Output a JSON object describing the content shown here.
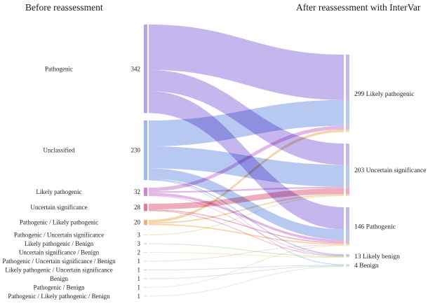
{
  "headers": {
    "left": "Before reassessment",
    "right": "After reassessment with InterVar"
  },
  "chart_data": {
    "type": "sankey",
    "title_left_column": "Before reassessment",
    "title_right_column": "After reassessment with InterVar",
    "left_nodes": [
      {
        "label": "Pathogenic",
        "value": 342,
        "color": "#b6a3e8",
        "flow_color": "#c6b6ee"
      },
      {
        "label": "Unclassified",
        "value": 230,
        "color": "#9db8ec",
        "flow_color": "#b7c9f1"
      },
      {
        "label": "Likely pathogenic",
        "value": 32,
        "color": "#d284d2",
        "flow_color": "#e3b7e6"
      },
      {
        "label": "Uncertain significance",
        "value": 28,
        "color": "#e57d92",
        "flow_color": "#efacbc"
      },
      {
        "label": "Pathogenic / Likely pathogenic",
        "value": 20,
        "color": "#efb277",
        "flow_color": "#f5d6ac"
      },
      {
        "label": "Pathogenic / Uncertain significance",
        "value": 3,
        "color": "#dde3a2",
        "flow_color": "#e8ecc0"
      },
      {
        "label": "Likely pathogenic / Benign",
        "value": 3,
        "color": "#b9dda6",
        "flow_color": "#d2e8c4"
      },
      {
        "label": "Uncertain significance / Benign",
        "value": 2,
        "color": "#e7e2a2",
        "flow_color": "#efecc2"
      },
      {
        "label": "Pathogenic / Uncertain significance / Benign",
        "value": 1,
        "color": "#f2bfc5",
        "flow_color": "#f6d6da"
      },
      {
        "label": "Likely pathogenic / Uncertain significance",
        "value": 1,
        "color": "#c9c2e0",
        "flow_color": "#dcd7ec"
      },
      {
        "label": "Benign",
        "value": 1,
        "color": "#abd9bf",
        "flow_color": "#c9e6d6"
      },
      {
        "label": "Pathogenic / Benign",
        "value": 1,
        "color": "#f2d2a9",
        "flow_color": "#f6e2c6"
      },
      {
        "label": "Pathogenic / Likely pathogenic / Benign",
        "value": 1,
        "color": "#c2dccb",
        "flow_color": "#d8e9df"
      }
    ],
    "right_nodes": [
      {
        "label": "Likely pathogenic",
        "value": 299
      },
      {
        "label": "Uncertain significance",
        "value": 203
      },
      {
        "label": "Pathogenic",
        "value": 146
      },
      {
        "label": "Likely benign",
        "value": 13
      },
      {
        "label": "Benign",
        "value": 4
      }
    ],
    "links_note": "link values estimated from ribbon widths; node totals are as labeled",
    "links": [
      {
        "source": 0,
        "target": 0,
        "value": 175
      },
      {
        "source": 0,
        "target": 1,
        "value": 82
      },
      {
        "source": 0,
        "target": 2,
        "value": 85
      },
      {
        "source": 1,
        "target": 0,
        "value": 100
      },
      {
        "source": 1,
        "target": 1,
        "value": 85
      },
      {
        "source": 1,
        "target": 2,
        "value": 40
      },
      {
        "source": 1,
        "target": 3,
        "value": 4
      },
      {
        "source": 1,
        "target": 4,
        "value": 1
      },
      {
        "source": 2,
        "target": 0,
        "value": 14
      },
      {
        "source": 2,
        "target": 1,
        "value": 6
      },
      {
        "source": 2,
        "target": 2,
        "value": 10
      },
      {
        "source": 2,
        "target": 3,
        "value": 2
      },
      {
        "source": 3,
        "target": 1,
        "value": 22
      },
      {
        "source": 3,
        "target": 2,
        "value": 4
      },
      {
        "source": 3,
        "target": 3,
        "value": 2
      },
      {
        "source": 4,
        "target": 0,
        "value": 10
      },
      {
        "source": 4,
        "target": 1,
        "value": 5
      },
      {
        "source": 4,
        "target": 2,
        "value": 5
      },
      {
        "source": 5,
        "target": 1,
        "value": 3
      },
      {
        "source": 6,
        "target": 3,
        "value": 3
      },
      {
        "source": 7,
        "target": 3,
        "value": 2
      },
      {
        "source": 8,
        "target": 2,
        "value": 1
      },
      {
        "source": 9,
        "target": 4,
        "value": 1
      },
      {
        "source": 10,
        "target": 4,
        "value": 1
      },
      {
        "source": 11,
        "target": 2,
        "value": 1
      },
      {
        "source": 12,
        "target": 4,
        "value": 1
      }
    ]
  }
}
